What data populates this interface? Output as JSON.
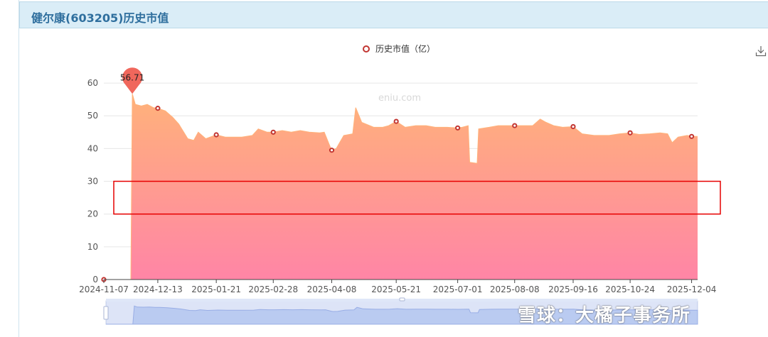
{
  "panel": {
    "title": "健尔康(603205)历史市值"
  },
  "legend": {
    "label": "历史市值（亿）",
    "marker_color": "#c23531"
  },
  "site_mark": "eniu.com",
  "watermark": "雪球：大橘子事务所",
  "icons": {
    "download": "download-icon"
  },
  "colors": {
    "area_top": "#ffb27a",
    "area_bottom": "#ff85a6",
    "marker": "#c23531",
    "max_pin": "#f0675c",
    "highlight_box": "#e60000"
  },
  "chart_data": {
    "type": "area",
    "title": "",
    "xlabel": "",
    "ylabel": "",
    "ylim": [
      0,
      65
    ],
    "yticks": [
      0,
      10,
      20,
      30,
      40,
      50,
      60
    ],
    "xticks": [
      "2024-11-07",
      "2024-12-13",
      "2025-01-21",
      "2025-02-28",
      "2025-04-08",
      "2025-05-21",
      "2025-07-01",
      "2025-08-08",
      "2025-09-16",
      "2025-10-24",
      "2025-12-04"
    ],
    "grid": true,
    "legend_position": "top",
    "series": [
      {
        "name": "历史市值（亿）",
        "values": [
          [
            "2024-11-07",
            0
          ],
          [
            "2024-11-25",
            0
          ],
          [
            "2024-11-26",
            56.71
          ],
          [
            "2024-11-28",
            53.5
          ],
          [
            "2024-12-02",
            53
          ],
          [
            "2024-12-06",
            53.5
          ],
          [
            "2024-12-10",
            52.5
          ],
          [
            "2024-12-13",
            52.3
          ],
          [
            "2024-12-18",
            51.5
          ],
          [
            "2024-12-23",
            49.5
          ],
          [
            "2024-12-27",
            47.5
          ],
          [
            "2025-01-02",
            43
          ],
          [
            "2025-01-06",
            42.5
          ],
          [
            "2025-01-09",
            45
          ],
          [
            "2025-01-14",
            43
          ],
          [
            "2025-01-21",
            44.2
          ],
          [
            "2025-01-27",
            43.5
          ],
          [
            "2025-02-07",
            43.5
          ],
          [
            "2025-02-14",
            44
          ],
          [
            "2025-02-18",
            46
          ],
          [
            "2025-02-24",
            45
          ],
          [
            "2025-02-28",
            45
          ],
          [
            "2025-03-06",
            45.5
          ],
          [
            "2025-03-12",
            45
          ],
          [
            "2025-03-18",
            45.5
          ],
          [
            "2025-03-24",
            45
          ],
          [
            "2025-03-31",
            44.8
          ],
          [
            "2025-04-03",
            45
          ],
          [
            "2025-04-07",
            40.5
          ],
          [
            "2025-04-08",
            39.5
          ],
          [
            "2025-04-11",
            40
          ],
          [
            "2025-04-16",
            44
          ],
          [
            "2025-04-22",
            44.5
          ],
          [
            "2025-04-24",
            52.5
          ],
          [
            "2025-04-28",
            48
          ],
          [
            "2025-05-06",
            46.5
          ],
          [
            "2025-05-12",
            46.5
          ],
          [
            "2025-05-16",
            47
          ],
          [
            "2025-05-21",
            48.3
          ],
          [
            "2025-05-27",
            46.5
          ],
          [
            "2025-06-03",
            47
          ],
          [
            "2025-06-10",
            47
          ],
          [
            "2025-06-16",
            46.5
          ],
          [
            "2025-06-24",
            46.5
          ],
          [
            "2025-07-01",
            46.3
          ],
          [
            "2025-07-04",
            46.5
          ],
          [
            "2025-07-08",
            47
          ],
          [
            "2025-07-09",
            35.8
          ],
          [
            "2025-07-14",
            35.5
          ],
          [
            "2025-07-15",
            46
          ],
          [
            "2025-07-22",
            46.5
          ],
          [
            "2025-07-28",
            47
          ],
          [
            "2025-08-04",
            47
          ],
          [
            "2025-08-08",
            47
          ],
          [
            "2025-08-14",
            47
          ],
          [
            "2025-08-20",
            47
          ],
          [
            "2025-08-25",
            49
          ],
          [
            "2025-08-29",
            48
          ],
          [
            "2025-09-03",
            47
          ],
          [
            "2025-09-09",
            46.5
          ],
          [
            "2025-09-16",
            46.7
          ],
          [
            "2025-09-22",
            44.5
          ],
          [
            "2025-09-30",
            44
          ],
          [
            "2025-10-10",
            44
          ],
          [
            "2025-10-17",
            44.5
          ],
          [
            "2025-10-24",
            44.8
          ],
          [
            "2025-10-30",
            44.3
          ],
          [
            "2025-11-06",
            44.5
          ],
          [
            "2025-11-13",
            44.8
          ],
          [
            "2025-11-18",
            44.5
          ],
          [
            "2025-11-21",
            41.8
          ],
          [
            "2025-11-25",
            43.5
          ],
          [
            "2025-12-01",
            44
          ],
          [
            "2025-12-04",
            43.7
          ],
          [
            "2025-12-08",
            43.7
          ]
        ]
      }
    ],
    "markers": [
      [
        "2024-11-07",
        0
      ],
      [
        "2024-12-13",
        52.3
      ],
      [
        "2025-01-21",
        44.2
      ],
      [
        "2025-02-28",
        45
      ],
      [
        "2025-04-08",
        39.5
      ],
      [
        "2025-05-21",
        48.3
      ],
      [
        "2025-07-01",
        46.3
      ],
      [
        "2025-08-08",
        47
      ],
      [
        "2025-09-16",
        46.7
      ],
      [
        "2025-10-24",
        44.8
      ],
      [
        "2025-12-04",
        43.7
      ]
    ],
    "max_point": {
      "date": "2024-11-26",
      "value": 56.71,
      "label": "56.71"
    },
    "highlight_band": [
      20,
      30
    ]
  }
}
